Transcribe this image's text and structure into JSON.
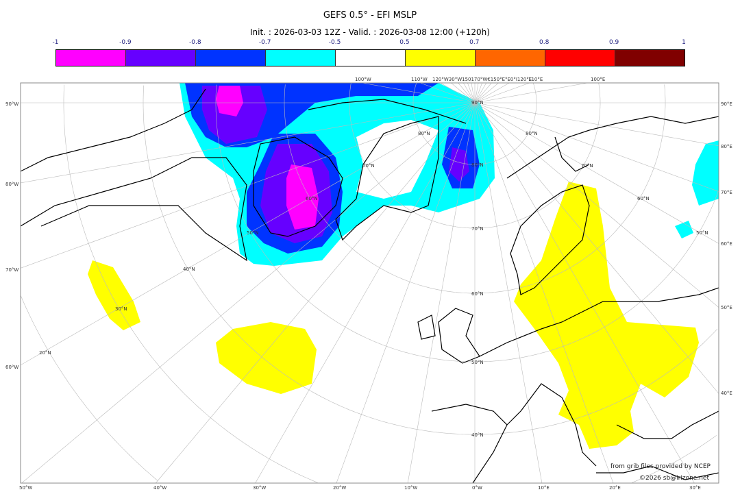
{
  "title": "GEFS 0.5° - EFI MSLP",
  "subtitle": "Init. : 2026-03-03 12Z - Valid. : 2026-03-08 12:00 (+120h)",
  "colorbar": {
    "ticks": [
      "-1",
      "-0.9",
      "-0.8",
      "-0.7",
      "-0.5",
      "0.5",
      "0.7",
      "0.8",
      "0.9",
      "1"
    ],
    "colors": [
      "#ff00ff",
      "#6600ff",
      "#0033ff",
      "#00ffff",
      "#ffffff",
      "#ffff00",
      "#ff6600",
      "#ff0000",
      "#800000"
    ]
  },
  "map": {
    "left_labels": [
      "90°W",
      "80°W",
      "70°W",
      "60°W"
    ],
    "right_labels": [
      "90°E",
      "80°E",
      "70°E",
      "60°E",
      "50°E",
      "40°E"
    ],
    "bottom_labels": [
      "50°W",
      "40°W",
      "30°W",
      "20°W",
      "10°W",
      "0°W",
      "10°E",
      "20°E",
      "30°E"
    ],
    "top_labels": [
      "100°W",
      "110°W",
      "120°W30°W150170°W€150°E°E0°I120°E",
      "110°E",
      "100°E"
    ],
    "lat_labels": [
      "90°N",
      "80°N",
      "70°N",
      "60°N",
      "50°N",
      "40°N"
    ],
    "inner_labels": [
      "80°N",
      "70°N",
      "60°N",
      "50°N",
      "40°N",
      "30°N",
      "20°N",
      "80°N",
      "70°N",
      "60°N",
      "50°N"
    ]
  },
  "credits": {
    "line1": "from grib files provided by NCEP",
    "line2": "©2026 sb@irizone.net"
  }
}
